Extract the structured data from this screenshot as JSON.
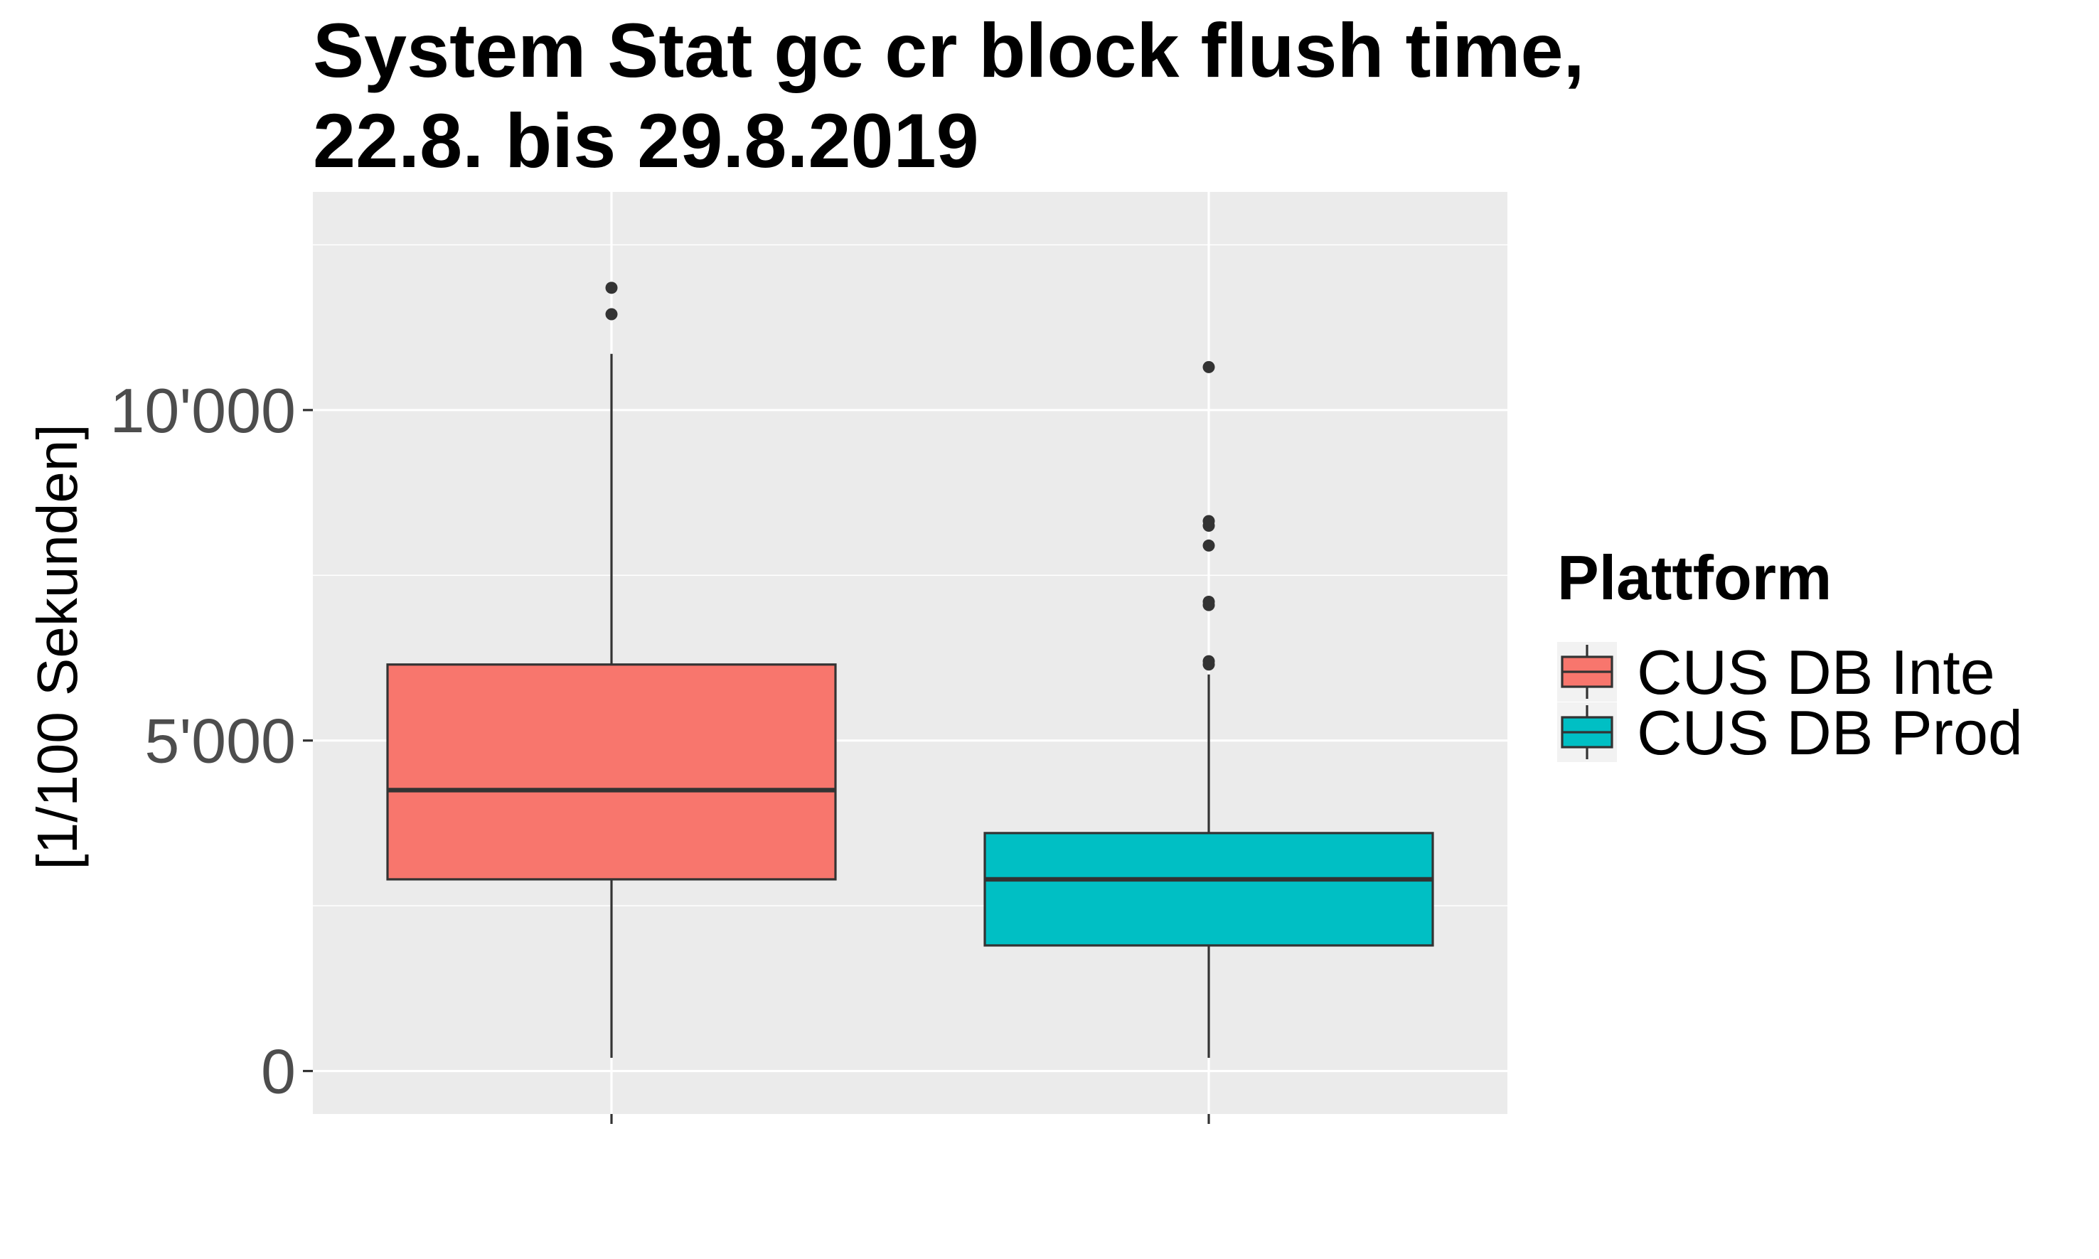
{
  "chart_data": {
    "type": "boxplot",
    "title": "System Stat gc cr block flush time,",
    "subtitle": "22.8. bis 29.8.2019",
    "ylabel": "[1/100 Sekunden]",
    "xlabel": "",
    "ylim": [
      -650,
      13300
    ],
    "y_ticks": [
      0,
      5000,
      10000
    ],
    "y_tick_labels": [
      "0",
      "5'000",
      "10'000"
    ],
    "grid": true,
    "legend": {
      "title": "Plattform",
      "position": "right"
    },
    "series": [
      {
        "name": "CUS DB Inte",
        "color": "#F8766D",
        "whisker_low": 200,
        "q1": 2900,
        "median": 4250,
        "q3": 6150,
        "whisker_high": 10850,
        "outliers": [
          11450,
          11850
        ]
      },
      {
        "name": "CUS DB Prod",
        "color": "#00BFC4",
        "whisker_low": 200,
        "q1": 1900,
        "median": 2900,
        "q3": 3600,
        "whisker_high": 6000,
        "outliers": [
          6150,
          6200,
          7050,
          7100,
          7950,
          8250,
          8320,
          10650
        ]
      }
    ]
  }
}
